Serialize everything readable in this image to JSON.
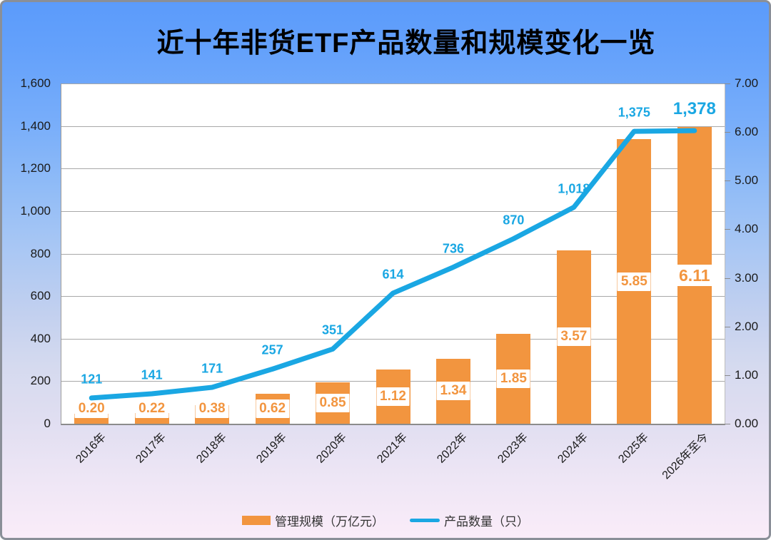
{
  "title": "近十年非货ETF产品数量和规模变化一览",
  "colors": {
    "bar": "#f2953f",
    "line": "#1aa7e3",
    "title_text": "#000000",
    "banner_blue": "#5b9bfb",
    "gridline": "#a8a8a8",
    "background_bottom": "#faecf9"
  },
  "chart_data": {
    "type": "combo",
    "title": "近十年非货ETF产品数量和规模变化一览",
    "categories": [
      "2016年",
      "2017年",
      "2018年",
      "2019年",
      "2020年",
      "2021年",
      "2022年",
      "2023年",
      "2024年",
      "2025年",
      "2026年至今"
    ],
    "series": [
      {
        "name": "管理规模（万亿元）",
        "type": "bar",
        "axis": "right",
        "color": "#f2953f",
        "values": [
          0.2,
          0.22,
          0.38,
          0.62,
          0.85,
          1.12,
          1.34,
          1.85,
          3.57,
          5.85,
          6.11
        ],
        "labels": [
          "0.20",
          "0.22",
          "0.38",
          "0.62",
          "0.85",
          "1.12",
          "1.34",
          "1.85",
          "3.57",
          "5.85",
          "6.11"
        ],
        "emphasize_last_label": true
      },
      {
        "name": "产品数量（只）",
        "type": "line",
        "axis": "left",
        "color": "#1aa7e3",
        "values": [
          121,
          141,
          171,
          257,
          351,
          614,
          736,
          870,
          1018,
          1375,
          1378
        ],
        "labels": [
          "121",
          "141",
          "171",
          "257",
          "351",
          "614",
          "736",
          "870",
          "1,018",
          "1,375",
          "1,378"
        ],
        "emphasize_last_label": true
      }
    ],
    "left_axis": {
      "min": 0,
      "max": 1600,
      "step": 200,
      "tick_labels": [
        "0",
        "200",
        "400",
        "600",
        "800",
        "1,000",
        "1,200",
        "1,400",
        "1,600"
      ]
    },
    "right_axis": {
      "min": 0,
      "max": 7,
      "step": 1,
      "tick_labels": [
        "0.00",
        "1.00",
        "2.00",
        "3.00",
        "4.00",
        "5.00",
        "6.00",
        "7.00"
      ]
    },
    "grid": true,
    "legend_position": "bottom",
    "legend": [
      "管理规模（万亿元）",
      "产品数量（只）"
    ]
  }
}
